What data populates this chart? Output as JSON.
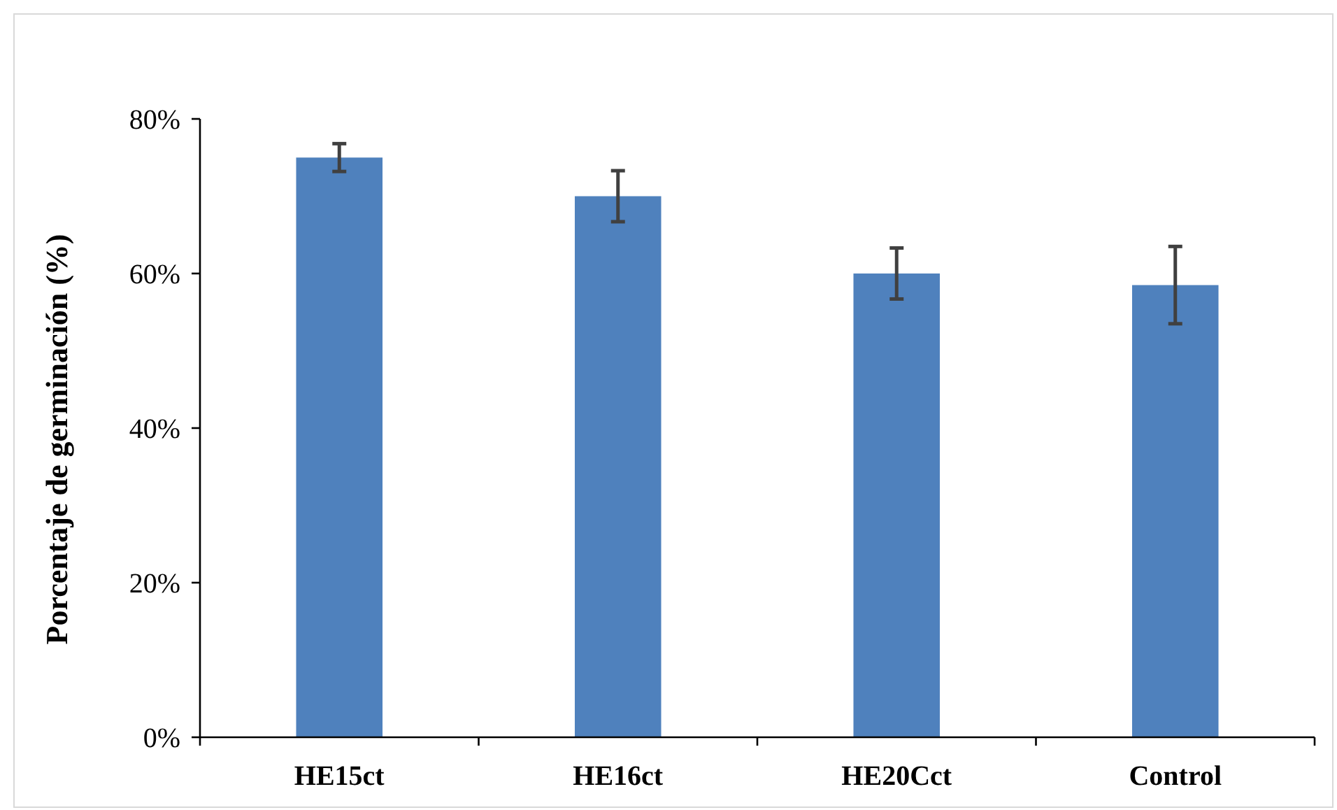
{
  "chart_data": {
    "type": "bar",
    "ylabel": "Porcentaje de germinación (%)",
    "categories": [
      "HE15ct",
      "HE16ct",
      "HE20Cct",
      "Control"
    ],
    "values": [
      75,
      70,
      60,
      58.5
    ],
    "errors": [
      1.8,
      3.3,
      3.3,
      5
    ],
    "color": "#4f81bd",
    "ylim": [
      0,
      80
    ],
    "yticks": [
      {
        "value": 0,
        "label": "0%"
      },
      {
        "value": 20,
        "label": "20%"
      },
      {
        "value": 40,
        "label": "40%"
      },
      {
        "value": 60,
        "label": "60%"
      },
      {
        "value": 80,
        "label": "80%"
      }
    ],
    "grid": false
  }
}
